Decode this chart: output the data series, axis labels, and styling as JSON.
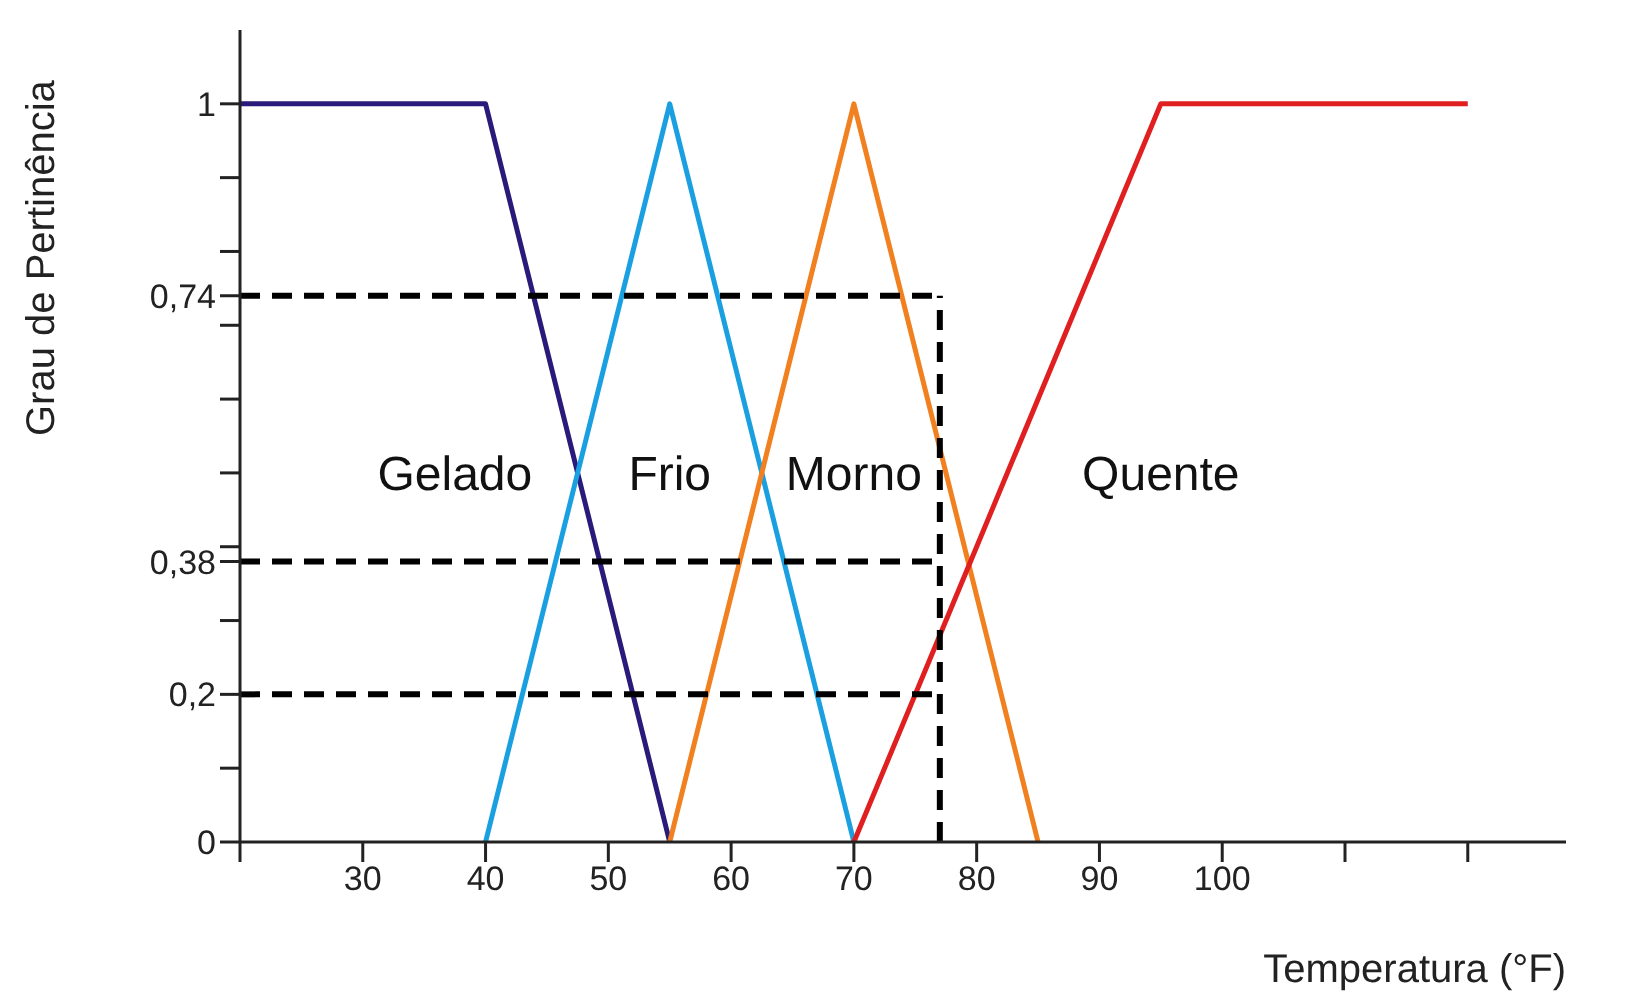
{
  "chart_data": {
    "type": "line",
    "xlabel": "Temperatura (°F)",
    "ylabel": "Grau de Pertinência",
    "xlim": [
      20,
      128
    ],
    "ylim": [
      0,
      1.1
    ],
    "xticks": [
      {
        "value": 20,
        "label": null
      },
      30,
      40,
      50,
      60,
      70,
      80,
      90,
      100,
      {
        "value": 110,
        "label": null
      },
      {
        "value": 120,
        "label": null
      }
    ],
    "yticks": [
      {
        "value": 0,
        "label": "0"
      },
      {
        "value": 0.1,
        "label": null
      },
      {
        "value": 0.2,
        "label": "0,2"
      },
      {
        "value": 0.3,
        "label": null
      },
      {
        "value": 0.38,
        "label": "0,38"
      },
      {
        "value": 0.4,
        "label": null
      },
      {
        "value": 0.5,
        "label": null
      },
      {
        "value": 0.6,
        "label": null
      },
      {
        "value": 0.7,
        "label": null
      },
      {
        "value": 0.74,
        "label": "0,74"
      },
      {
        "value": 0.8,
        "label": null
      },
      {
        "value": 0.9,
        "label": null
      },
      {
        "value": 1,
        "label": "1"
      }
    ],
    "marker": "none",
    "series": [
      {
        "name": "Gelado",
        "color": "#2a1a7a",
        "x": [
          20,
          40,
          55
        ],
        "values": [
          1,
          1,
          0
        ],
        "line_style": "solid"
      },
      {
        "name": "Frio",
        "color": "#1aa0e0",
        "x": [
          40,
          55,
          70
        ],
        "values": [
          0,
          1,
          0
        ],
        "line_style": "solid"
      },
      {
        "name": "Morno",
        "color": "#f08020",
        "x": [
          55,
          70,
          85
        ],
        "values": [
          0,
          1,
          0
        ],
        "line_style": "solid"
      },
      {
        "name": "Quente",
        "color": "#e02020",
        "x": [
          70,
          95,
          120
        ],
        "values": [
          0,
          1,
          1
        ],
        "line_style": "solid"
      },
      {
        "color": "#000000",
        "x": [
          20,
          77
        ],
        "values": [
          0.74,
          0.74
        ],
        "line_style": "dashed"
      },
      {
        "color": "#000000",
        "x": [
          20,
          77
        ],
        "values": [
          0.38,
          0.38
        ],
        "line_style": "dashed"
      },
      {
        "color": "#000000",
        "x": [
          20,
          77
        ],
        "values": [
          0.2,
          0.2
        ],
        "line_style": "dashed"
      },
      {
        "color": "#000000",
        "x": [
          77,
          77
        ],
        "values": [
          0,
          0.74
        ],
        "line_style": "dashed"
      }
    ]
  }
}
